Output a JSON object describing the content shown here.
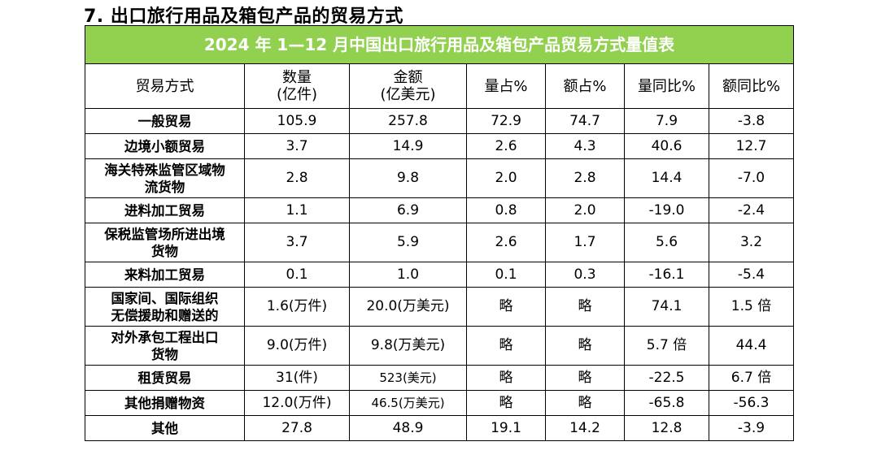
{
  "section_title": "7. 出口旅行用品及箱包产品的贸易方式",
  "table_caption": "2024 年 1—12 月中国出口旅行用品及箱包产品贸易方式量值表",
  "headers": {
    "mode": "贸易方式",
    "qty_line1": "数量",
    "qty_line2": "(亿件)",
    "val_line1": "金额",
    "val_line2": "(亿美元)",
    "qty_share": "量占%",
    "val_share": "额占%",
    "qty_yoy": "量同比%",
    "val_yoy": "额同比%"
  },
  "rows": [
    {
      "name": "一般贸易",
      "qty": "105.9",
      "val": "257.8",
      "qty_share": "72.9",
      "val_share": "74.7",
      "qty_yoy": "7.9",
      "val_yoy": "-3.8"
    },
    {
      "name": "边境小额贸易",
      "qty": "3.7",
      "val": "14.9",
      "qty_share": "2.6",
      "val_share": "4.3",
      "qty_yoy": "40.6",
      "val_yoy": "12.7"
    },
    {
      "name_line1": "海关特殊监管区域物",
      "name_line2": "流货物",
      "qty": "2.8",
      "val": "9.8",
      "qty_share": "2.0",
      "val_share": "2.8",
      "qty_yoy": "14.4",
      "val_yoy": "-7.0"
    },
    {
      "name": "进料加工贸易",
      "qty": "1.1",
      "val": "6.9",
      "qty_share": "0.8",
      "val_share": "2.0",
      "qty_yoy": "-19.0",
      "val_yoy": "-2.4"
    },
    {
      "name_line1": "保税监管场所进出境",
      "name_line2": "货物",
      "qty": "3.7",
      "val": "5.9",
      "qty_share": "2.6",
      "val_share": "1.7",
      "qty_yoy": "5.6",
      "val_yoy": "3.2"
    },
    {
      "name": "来料加工贸易",
      "qty": "0.1",
      "val": "1.0",
      "qty_share": "0.1",
      "val_share": "0.3",
      "qty_yoy": "-16.1",
      "val_yoy": "-5.4"
    },
    {
      "name_line1": "国家间、国际组织",
      "name_line2": "无偿援助和赠送的",
      "qty": "1.6(万件)",
      "val": "20.0(万美元)",
      "qty_share": "略",
      "val_share": "略",
      "qty_yoy": "74.1",
      "val_yoy": "1.5 倍"
    },
    {
      "name_line1": "对外承包工程出口",
      "name_line2": "货物",
      "qty": "9.0(万件)",
      "val": "9.8(万美元)",
      "qty_share": "略",
      "val_share": "略",
      "qty_yoy": "5.7 倍",
      "val_yoy": "44.4"
    },
    {
      "name": "租赁贸易",
      "qty": "31(件)",
      "val": "523(美元)",
      "qty_share": "略",
      "val_share": "略",
      "qty_yoy": "-22.5",
      "val_yoy": "6.7 倍"
    },
    {
      "name": "其他捐赠物资",
      "qty": "12.0(万件)",
      "val": "46.5(万美元)",
      "qty_share": "略",
      "val_share": "略",
      "qty_yoy": "-65.8",
      "val_yoy": "-56.3"
    },
    {
      "name": "其他",
      "qty": "27.8",
      "val": "48.9",
      "qty_share": "19.1",
      "val_share": "14.2",
      "qty_yoy": "12.8",
      "val_yoy": "-3.9"
    }
  ]
}
